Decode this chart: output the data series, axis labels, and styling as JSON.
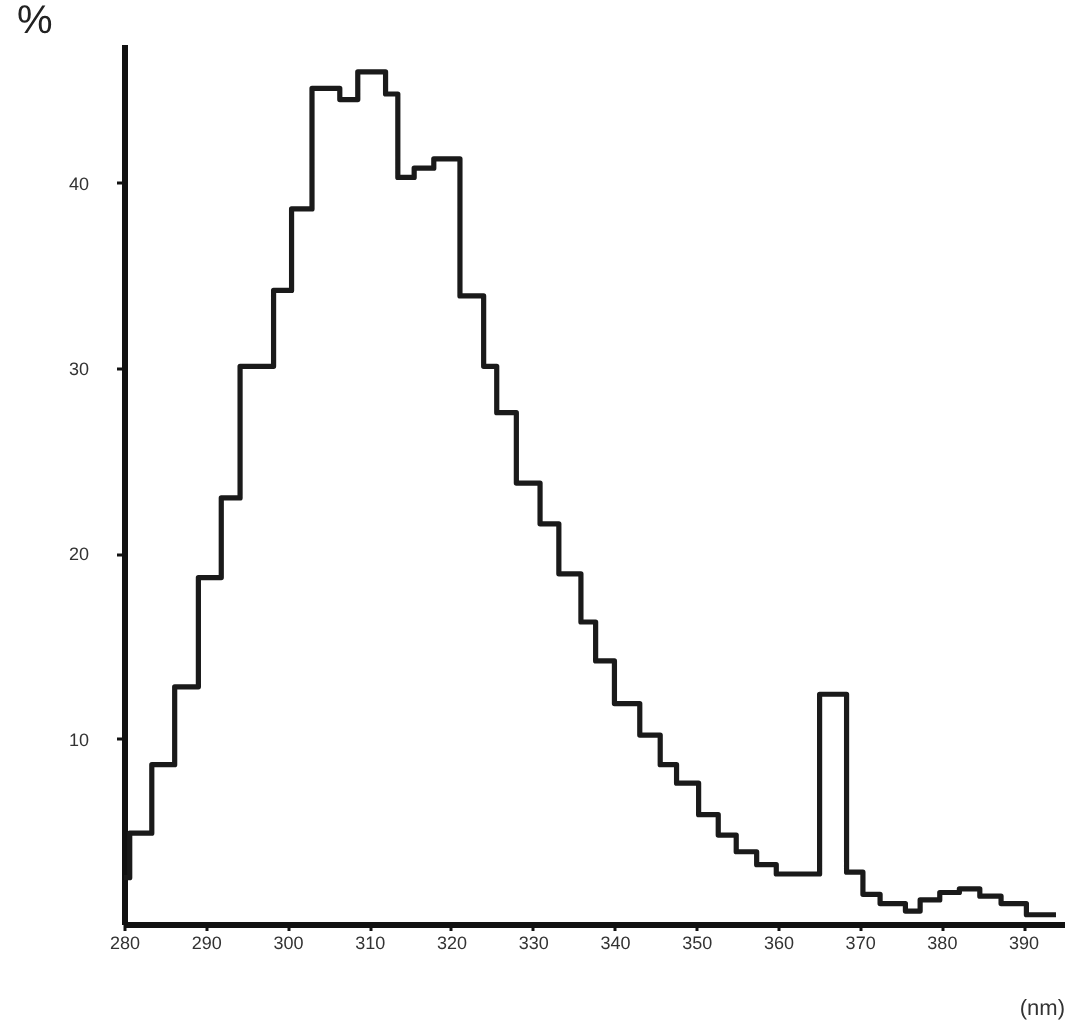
{
  "chart_data": {
    "type": "step",
    "ylabel": "%",
    "xlabel": "(nm)",
    "color": "#1a1a1a",
    "x": [
      280,
      280.7,
      283.4,
      286.2,
      289.1,
      291.9,
      294.2,
      298.3,
      300.5,
      303.0,
      306.4,
      308.6,
      312.0,
      313.5,
      315.5,
      317.9,
      321.1,
      324.0,
      325.6,
      328.0,
      330.9,
      333.2,
      335.9,
      337.7,
      340.0,
      343.1,
      345.6,
      347.6,
      350.3,
      352.7,
      354.9,
      357.4,
      359.8,
      365.1,
      368.4,
      370.4,
      372.5,
      375.6,
      377.4,
      379.8,
      382.2,
      384.7,
      387.3,
      390.4,
      393.7
    ],
    "values": [
      2.5,
      4.9,
      8.6,
      12.8,
      18.7,
      23.0,
      30.1,
      34.2,
      38.6,
      45.1,
      44.5,
      46.0,
      44.8,
      40.3,
      40.8,
      41.3,
      33.9,
      30.1,
      27.6,
      23.8,
      21.6,
      18.9,
      16.3,
      14.2,
      11.9,
      10.2,
      8.6,
      7.6,
      5.9,
      4.8,
      3.9,
      3.2,
      2.7,
      12.4,
      2.8,
      1.6,
      1.1,
      0.7,
      1.3,
      1.7,
      1.9,
      1.5,
      1.1,
      0.5,
      0.5
    ],
    "xlim": [
      280,
      395
    ],
    "ylim": [
      0,
      47.5
    ],
    "xticks": [
      280,
      290,
      300,
      310,
      320,
      330,
      340,
      350,
      360,
      370,
      380,
      390
    ],
    "yticks": [
      10,
      20,
      30,
      40
    ],
    "grid": false
  }
}
